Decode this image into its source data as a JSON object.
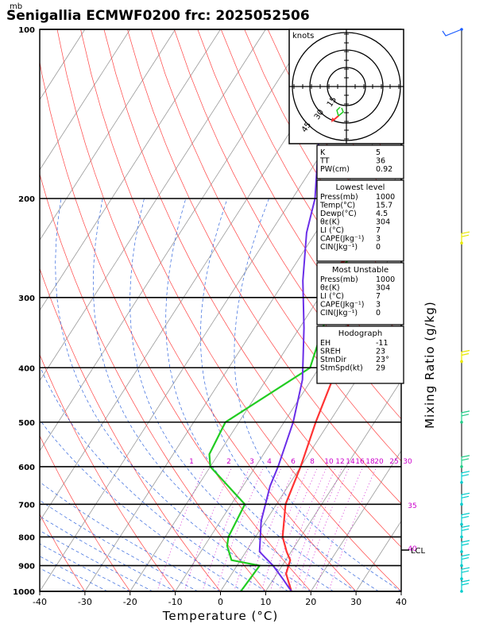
{
  "title": "Senigallia ECMWF0200  frc: 2025052506",
  "pressure_unit": "mb",
  "chart_data": {
    "type": "line",
    "title": "Senigallia ECMWF0200  frc: 2025052506",
    "xlabel": "Temperature (°C)",
    "ylabel": "mb",
    "right_label": "Mixing Ratio (g/kg)",
    "xlim": [
      -40,
      40
    ],
    "ylim": [
      1000,
      100
    ],
    "log_y": true,
    "x_ticks": [
      -40,
      -30,
      -20,
      -10,
      0,
      10,
      20,
      30,
      40
    ],
    "y_ticks": [
      100,
      200,
      300,
      400,
      500,
      600,
      700,
      800,
      900,
      1000
    ],
    "series": [
      {
        "color": "#ff3333",
        "points": [
          [
            15.7,
            1000
          ],
          [
            12,
            930
          ],
          [
            11,
            880
          ],
          [
            9,
            850
          ],
          [
            6,
            800
          ],
          [
            2,
            700
          ],
          [
            0,
            600
          ],
          [
            -3,
            500
          ],
          [
            -6,
            400
          ],
          [
            -12,
            300
          ],
          [
            -20,
            260
          ],
          [
            -4,
            200
          ],
          [
            16,
            130
          ],
          [
            30,
            100
          ]
        ]
      },
      {
        "color": "#22cc22",
        "points": [
          [
            4.5,
            1000
          ],
          [
            5,
            900
          ],
          [
            -2,
            880
          ],
          [
            -5,
            830
          ],
          [
            -6,
            800
          ],
          [
            -7,
            700
          ],
          [
            -20,
            600
          ],
          [
            -22,
            570
          ],
          [
            -23,
            500
          ],
          [
            -12,
            400
          ],
          [
            -17,
            300
          ],
          [
            -19,
            260
          ],
          [
            -18,
            200
          ],
          [
            -16,
            150
          ],
          [
            -13,
            100
          ]
        ]
      },
      {
        "color": "#6a2ee8",
        "points": [
          [
            15.7,
            1000
          ],
          [
            12,
            950
          ],
          [
            8,
            900
          ],
          [
            5,
            870
          ],
          [
            3,
            850
          ],
          [
            -1,
            750
          ],
          [
            -4,
            650
          ],
          [
            -5,
            600
          ],
          [
            -8,
            500
          ],
          [
            -12,
            420
          ],
          [
            -19,
            340
          ],
          [
            -26,
            280
          ],
          [
            -32,
            230
          ],
          [
            -35,
            200
          ],
          [
            -42,
            160
          ]
        ]
      }
    ],
    "mixing_ratio_labels": [
      "1",
      "2",
      "3",
      "4",
      "6",
      "8",
      "10",
      "12",
      "14",
      "16",
      "18",
      "20",
      "25",
      "30",
      "35",
      "40"
    ],
    "lcl_label": "LCL"
  },
  "hodograph": {
    "units": "knots",
    "ring_labels": [
      "15",
      "30",
      "45"
    ]
  },
  "indices": [
    {
      "label": "K",
      "value": "5"
    },
    {
      "label": "TT",
      "value": "36"
    },
    {
      "label": "PW(cm)",
      "value": "0.92"
    }
  ],
  "lowest_level": {
    "header": "Lowest level",
    "rows": [
      {
        "label": "Press(mb)",
        "value": "1000"
      },
      {
        "label": "Temp(°C)",
        "value": "15.7"
      },
      {
        "label": "Dewp(°C)",
        "value": "4.5"
      },
      {
        "label": "θε(K)",
        "value": "304"
      },
      {
        "label": "LI (°C)",
        "value": "7"
      },
      {
        "label": "CAPE(Jkg⁻¹)",
        "value": "3"
      },
      {
        "label": "CIN(Jkg⁻¹)",
        "value": "0"
      }
    ]
  },
  "most_unstable": {
    "header": "Most Unstable",
    "rows": [
      {
        "label": "Press(mb)",
        "value": "1000"
      },
      {
        "label": "θε(K)",
        "value": "304"
      },
      {
        "label": "LI (°C)",
        "value": "7"
      },
      {
        "label": "CAPE(Jkg⁻¹)",
        "value": "3"
      },
      {
        "label": "CIN(Jkg⁻¹)",
        "value": "0"
      }
    ]
  },
  "hodograph_params": {
    "header": "Hodograph",
    "rows": [
      {
        "label": "EH",
        "value": "-11"
      },
      {
        "label": "SREH",
        "value": "23"
      },
      {
        "label": "StmDir",
        "value": "23°"
      },
      {
        "label": "StmSpd(kt)",
        "value": "29"
      }
    ]
  },
  "colors": {
    "temperature": "#ff3333",
    "dewpoint": "#22cc22",
    "parcel": "#6a2ee8",
    "isotherm": "#999999",
    "dry_adiabat": "#ff4444",
    "moist_adiabat": "#3366dd",
    "mixing_ratio": "#cc00cc",
    "wind_axis": "#00cccc"
  }
}
